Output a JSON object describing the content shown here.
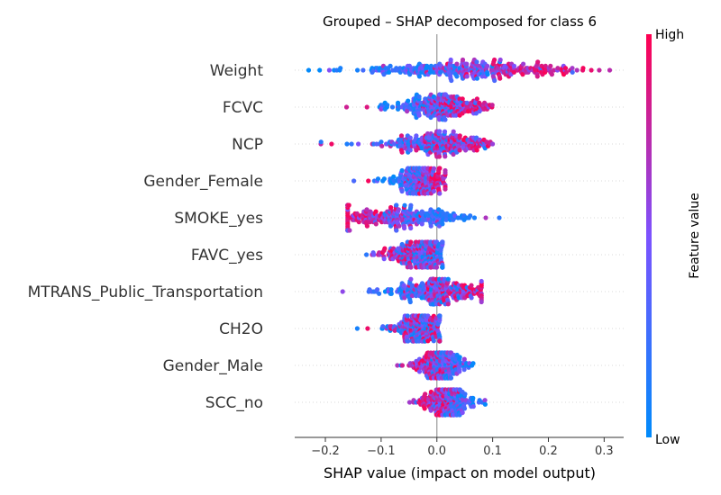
{
  "chart_data": {
    "type": "scatter",
    "title": "Grouped – SHAP decomposed for class 6",
    "xlabel": "SHAP value (impact on model output)",
    "xlim": [
      -0.255,
      0.335
    ],
    "xticks": [
      -0.2,
      -0.1,
      0.0,
      0.1,
      0.2,
      0.3
    ],
    "xtick_labels": [
      "−0.2",
      "−0.1",
      "0.0",
      "0.1",
      "0.2",
      "0.3"
    ],
    "features": [
      {
        "name": "Weight",
        "min": -0.23,
        "max": 0.31,
        "low_center": -0.05,
        "high_center": 0.18,
        "spread": 0.07,
        "n": 320
      },
      {
        "name": "FCVC",
        "min": -0.18,
        "max": 0.11,
        "low_center": -0.04,
        "high_center": 0.05,
        "spread": 0.035,
        "n": 260
      },
      {
        "name": "NCP",
        "min": -0.21,
        "max": 0.1,
        "low_center": -0.02,
        "high_center": 0.02,
        "spread": 0.045,
        "n": 260
      },
      {
        "name": "Gender_Female",
        "min": -0.19,
        "max": 0.015,
        "low_center": -0.06,
        "high_center": 0.0,
        "spread": 0.02,
        "n": 220
      },
      {
        "name": "SMOKE_yes",
        "min": -0.16,
        "max": 0.115,
        "low_center": 0.01,
        "high_center": -0.14,
        "spread": 0.04,
        "n": 260
      },
      {
        "name": "FAVC_yes",
        "min": -0.15,
        "max": 0.01,
        "low_center": -0.01,
        "high_center": -0.05,
        "spread": 0.03,
        "n": 260
      },
      {
        "name": "MTRANS_Public_Transportation",
        "min": -0.2,
        "max": 0.08,
        "low_center": -0.04,
        "high_center": 0.03,
        "spread": 0.04,
        "n": 260
      },
      {
        "name": "CH2O",
        "min": -0.2,
        "max": 0.005,
        "low_center": -0.03,
        "high_center": -0.04,
        "spread": 0.025,
        "n": 240
      },
      {
        "name": "Gender_Male",
        "min": -0.09,
        "max": 0.065,
        "low_center": 0.03,
        "high_center": -0.02,
        "spread": 0.02,
        "n": 240
      },
      {
        "name": "SCC_no",
        "min": -0.05,
        "max": 0.09,
        "low_center": 0.04,
        "high_center": 0.0,
        "spread": 0.02,
        "n": 240
      }
    ],
    "colorbar": {
      "label": "Feature value",
      "high_label": "High",
      "low_label": "Low",
      "low_color": "#008bfb",
      "mid_color": "#7c52ff",
      "high_color": "#ff0051"
    },
    "grid": false
  }
}
